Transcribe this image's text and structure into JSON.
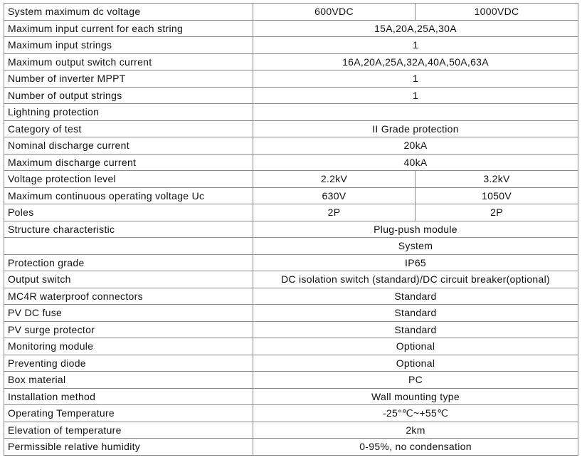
{
  "table": {
    "rows": [
      {
        "label": "System maximum dc voltage",
        "values": [
          "600VDC",
          "1000VDC"
        ]
      },
      {
        "label": "Maximum input current for each string",
        "values": [
          "15A,20A,25A,30A"
        ]
      },
      {
        "label": "Maximum input strings",
        "values": [
          "1"
        ]
      },
      {
        "label": "Maximum output switch current",
        "values": [
          "16A,20A,25A,32A,40A,50A,63A"
        ]
      },
      {
        "label": "Number of inverter MPPT",
        "values": [
          "1"
        ]
      },
      {
        "label": "Number of output strings",
        "values": [
          "1"
        ]
      },
      {
        "label": "Lightning protection"
      },
      {
        "label": "Category of test",
        "values": [
          "II Grade protection"
        ]
      },
      {
        "label": "Nominal discharge current",
        "values": [
          "20kA"
        ]
      },
      {
        "label": "Maximum discharge current",
        "values": [
          "40kA"
        ]
      },
      {
        "label": "Voltage protection level",
        "values": [
          "2.2kV",
          "3.2kV"
        ]
      },
      {
        "label": "Maximum continuous operating voltage Uc",
        "values": [
          "630V",
          "1050V"
        ]
      },
      {
        "label": "Poles",
        "values": [
          "2P",
          "2P"
        ]
      },
      {
        "label": "Structure characteristic",
        "values": [
          "Plug-push module"
        ]
      },
      {
        "values": [
          "System"
        ]
      },
      {
        "label": "Protection grade",
        "values": [
          "IP65"
        ]
      },
      {
        "label": "Output switch",
        "values": [
          "DC isolation switch (standard)/DC circuit breaker(optional)"
        ]
      },
      {
        "label": "MC4R waterproof connectors",
        "values": [
          "Standard"
        ]
      },
      {
        "label": "PV DC fuse",
        "values": [
          "Standard"
        ]
      },
      {
        "label": "PV surge protector",
        "values": [
          "Standard"
        ]
      },
      {
        "label": "Monitoring module",
        "values": [
          "Optional"
        ]
      },
      {
        "label": "Preventing diode",
        "values": [
          "Optional"
        ]
      },
      {
        "label": "Box material",
        "values": [
          "PC"
        ]
      },
      {
        "label": "Installation method",
        "values": [
          "Wall mounting type"
        ]
      },
      {
        "label": "Operating Temperature",
        "values": [
          "-25°℃~+55℃"
        ]
      },
      {
        "label": "Elevation of temperature",
        "values": [
          "2km"
        ]
      },
      {
        "label": "Permissible relative humidity",
        "values": [
          "0-95%, no condensation"
        ]
      }
    ]
  }
}
